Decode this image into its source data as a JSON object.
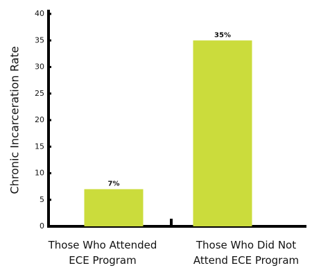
{
  "chart_data": {
    "type": "bar",
    "y_label": "Chronic Incarceration Rate",
    "categories": [
      "Those Who Attended\nECE Program",
      "Those Who Did Not\nAttend ECE Program"
    ],
    "values": [
      7,
      35
    ],
    "value_labels": [
      "7%",
      "35%"
    ],
    "color": "#cbdc3c",
    "ylim": [
      0,
      40
    ],
    "yticks": [
      0,
      5,
      10,
      15,
      20,
      25,
      30,
      35,
      40
    ]
  }
}
